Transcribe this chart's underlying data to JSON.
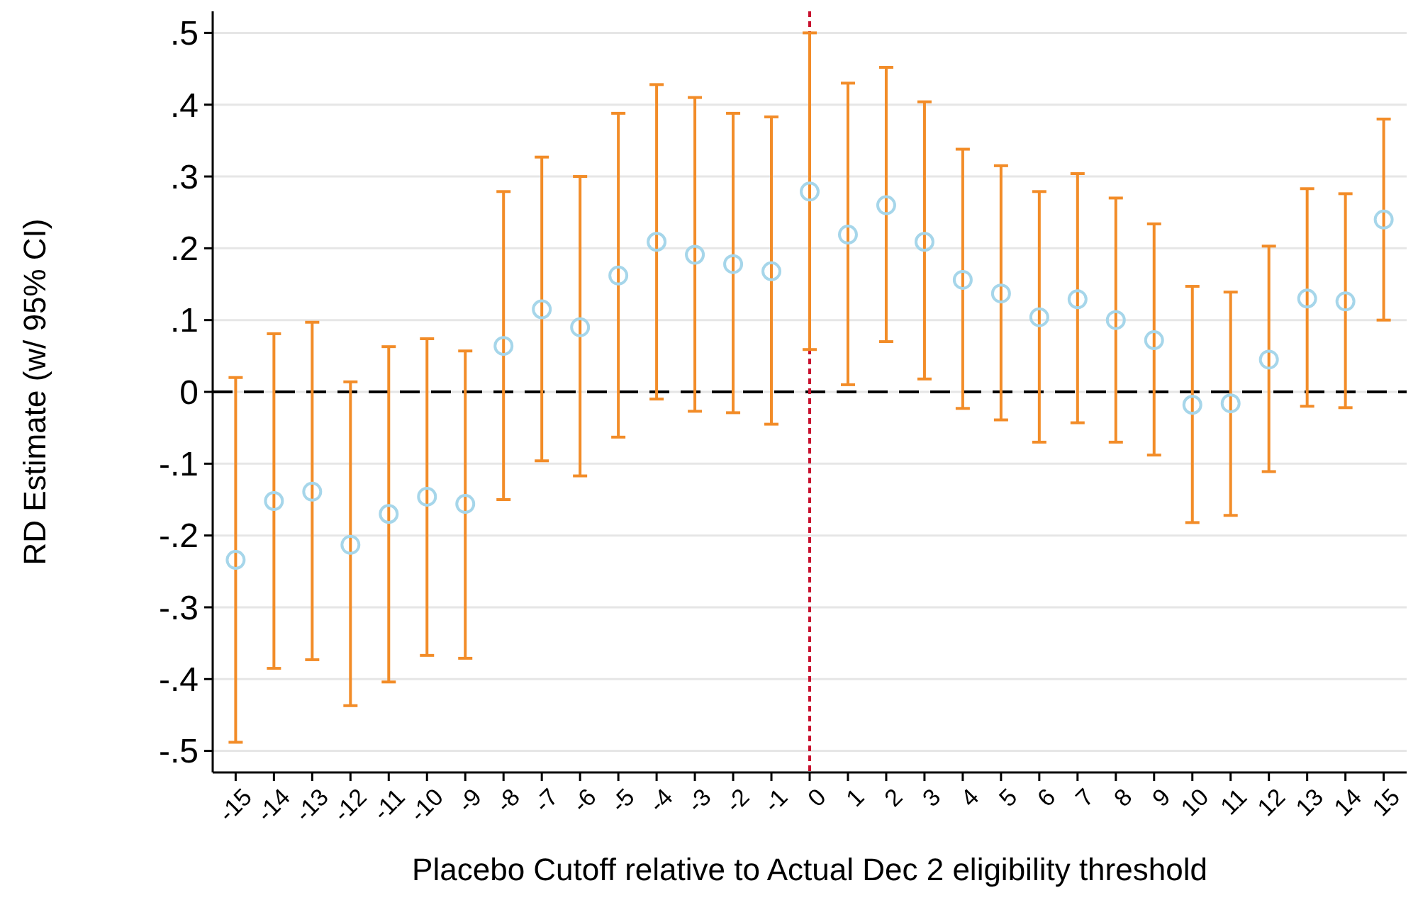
{
  "chart_data": {
    "type": "scatter",
    "xlabel": "Placebo Cutoff relative to Actual Dec 2 eligibility threshold",
    "ylabel": "RD Estimate (w/ 95% CI)",
    "xlim": [
      -15.6,
      15.6
    ],
    "xticks": [
      -15,
      -14,
      -13,
      -12,
      -11,
      -10,
      -9,
      -8,
      -7,
      -6,
      -5,
      -4,
      -3,
      -2,
      -1,
      0,
      1,
      2,
      3,
      4,
      5,
      6,
      7,
      8,
      9,
      10,
      11,
      12,
      13,
      14,
      15
    ],
    "ylim": [
      -0.53,
      0.53
    ],
    "yticks": [
      {
        "value": -0.5,
        "label": "-.5"
      },
      {
        "value": -0.4,
        "label": "-.4"
      },
      {
        "value": -0.3,
        "label": "-.3"
      },
      {
        "value": -0.2,
        "label": "-.2"
      },
      {
        "value": -0.1,
        "label": "-.1"
      },
      0,
      {
        "value": 0.1,
        "label": ".1"
      },
      {
        "value": 0.2,
        "label": ".2"
      },
      {
        "value": 0.3,
        "label": ".3"
      },
      {
        "value": 0.4,
        "label": ".4"
      },
      {
        "value": 0.5,
        "label": ".5"
      }
    ],
    "grid": "y",
    "marker": "circle",
    "series": [
      {
        "color": "#a6d6ea",
        "x": [
          -15,
          -14,
          -13,
          -12,
          -11,
          -10,
          -9,
          -8,
          -7,
          -6,
          -5,
          -4,
          -3,
          -2,
          -1,
          0,
          1,
          2,
          3,
          4,
          5,
          6,
          7,
          8,
          9,
          10,
          11,
          12,
          13,
          14,
          15
        ],
        "values": [
          -0.234,
          -0.152,
          -0.139,
          -0.213,
          -0.17,
          -0.146,
          -0.156,
          0.064,
          0.115,
          0.09,
          0.162,
          0.209,
          0.191,
          0.178,
          0.168,
          0.279,
          0.219,
          0.26,
          0.209,
          0.156,
          0.137,
          0.104,
          0.129,
          0.1,
          0.072,
          -0.018,
          -0.016,
          0.045,
          0.13,
          0.126,
          0.24
        ],
        "errors": [
          [
            -0.488,
            0.02
          ],
          [
            -0.385,
            0.081
          ],
          [
            -0.373,
            0.097
          ],
          [
            -0.437,
            0.014
          ],
          [
            -0.404,
            0.063
          ],
          [
            -0.367,
            0.074
          ],
          [
            -0.371,
            0.057
          ],
          [
            -0.15,
            0.279
          ],
          [
            -0.096,
            0.327
          ],
          [
            -0.117,
            0.3
          ],
          [
            -0.063,
            0.388
          ],
          [
            -0.01,
            0.428
          ],
          [
            -0.027,
            0.41
          ],
          [
            -0.029,
            0.388
          ],
          [
            -0.045,
            0.383
          ],
          [
            0.059,
            0.5
          ],
          [
            0.01,
            0.43
          ],
          [
            0.07,
            0.452
          ],
          [
            0.018,
            0.404
          ],
          [
            -0.023,
            0.338
          ],
          [
            -0.039,
            0.315
          ],
          [
            -0.07,
            0.279
          ],
          [
            -0.043,
            0.304
          ],
          [
            -0.07,
            0.27
          ],
          [
            -0.088,
            0.234
          ],
          [
            -0.182,
            0.147
          ],
          [
            -0.172,
            0.139
          ],
          [
            -0.111,
            0.203
          ],
          [
            -0.02,
            0.283
          ],
          [
            -0.022,
            0.276
          ],
          [
            0.1,
            0.38
          ]
        ]
      }
    ],
    "ref_lines": [
      {
        "axis": "y",
        "value": 0,
        "color": "#000000",
        "line_style": "dashed"
      },
      {
        "axis": "x",
        "value": 0,
        "color": "#c8102e",
        "line_style": "dotted"
      }
    ]
  }
}
